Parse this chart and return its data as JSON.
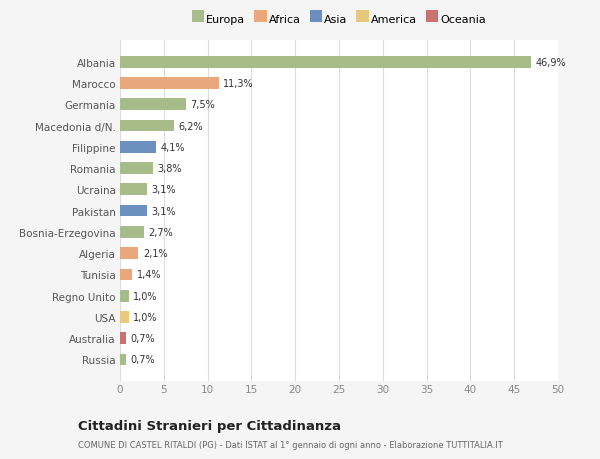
{
  "countries": [
    "Albania",
    "Marocco",
    "Germania",
    "Macedonia d/N.",
    "Filippine",
    "Romania",
    "Ucraina",
    "Pakistan",
    "Bosnia-Erzegovina",
    "Algeria",
    "Tunisia",
    "Regno Unito",
    "USA",
    "Australia",
    "Russia"
  ],
  "values": [
    46.9,
    11.3,
    7.5,
    6.2,
    4.1,
    3.8,
    3.1,
    3.1,
    2.7,
    2.1,
    1.4,
    1.0,
    1.0,
    0.7,
    0.7
  ],
  "labels": [
    "46,9%",
    "11,3%",
    "7,5%",
    "6,2%",
    "4,1%",
    "3,8%",
    "3,1%",
    "3,1%",
    "2,7%",
    "2,1%",
    "1,4%",
    "1,0%",
    "1,0%",
    "0,7%",
    "0,7%"
  ],
  "continents": [
    "Europa",
    "Africa",
    "Europa",
    "Europa",
    "Asia",
    "Europa",
    "Europa",
    "Asia",
    "Europa",
    "Africa",
    "Africa",
    "Europa",
    "America",
    "Oceania",
    "Europa"
  ],
  "continent_colors": {
    "Europa": "#a8bc8a",
    "Africa": "#e8a87c",
    "Asia": "#6b8fbf",
    "America": "#e8c87c",
    "Oceania": "#c97070"
  },
  "legend_order": [
    "Europa",
    "Africa",
    "Asia",
    "America",
    "Oceania"
  ],
  "title": "Cittadini Stranieri per Cittadinanza",
  "subtitle": "COMUNE DI CASTEL RITALDI (PG) - Dati ISTAT al 1° gennaio di ogni anno - Elaborazione TUTTITALIA.IT",
  "xlim": [
    0,
    50
  ],
  "xticks": [
    0,
    5,
    10,
    15,
    20,
    25,
    30,
    35,
    40,
    45,
    50
  ],
  "background_color": "#f5f5f5",
  "bar_background_color": "#ffffff",
  "grid_color": "#dddddd"
}
